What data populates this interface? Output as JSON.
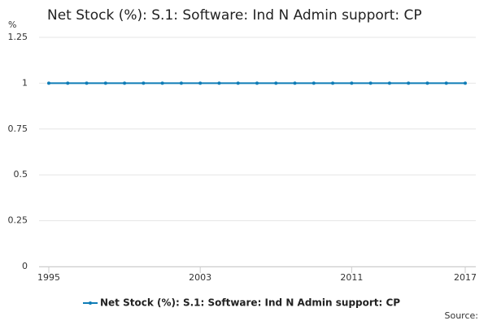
{
  "chart_data": {
    "type": "line",
    "title": "Net Stock (%): S.1: Software: Ind N Admin support: CP",
    "y_label": "%",
    "source": "Source:",
    "x": [
      1995,
      1996,
      1997,
      1998,
      1999,
      2000,
      2001,
      2002,
      2003,
      2004,
      2005,
      2006,
      2007,
      2008,
      2009,
      2010,
      2011,
      2012,
      2013,
      2014,
      2015,
      2016,
      2017
    ],
    "series": [
      {
        "name": "Net Stock (%): S.1: Software: Ind N Admin support: CP",
        "color": "#0f7cb6",
        "values": [
          1,
          1,
          1,
          1,
          1,
          1,
          1,
          1,
          1,
          1,
          1,
          1,
          1,
          1,
          1,
          1,
          1,
          1,
          1,
          1,
          1,
          1,
          1
        ]
      }
    ],
    "xlim": [
      1995,
      2017
    ],
    "xticks": [
      1995,
      2003,
      2011,
      2017
    ],
    "ylim": [
      0,
      1.25
    ],
    "yticks": [
      0,
      0.25,
      0.5,
      0.75,
      1,
      1.25
    ],
    "grid": true
  }
}
